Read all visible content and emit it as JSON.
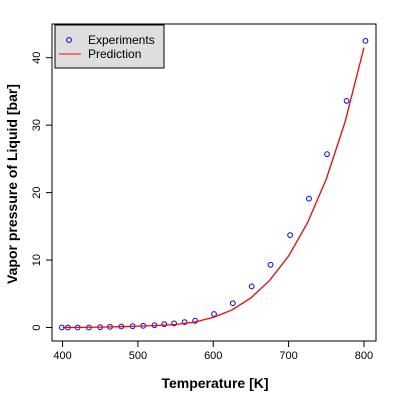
{
  "chart_data": {
    "type": "scatter",
    "title": "",
    "xlabel": "Temperature [K]",
    "ylabel": "Vapor pressure of Liquid [bar]",
    "xlim": [
      386,
      816
    ],
    "ylim": [
      -2,
      45
    ],
    "xticks": [
      400,
      500,
      600,
      700,
      800
    ],
    "yticks": [
      0,
      10,
      20,
      30,
      40
    ],
    "xtick_labels": [
      "400",
      "500",
      "600",
      "700",
      "800"
    ],
    "ytick_labels": [
      "0",
      "10",
      "20",
      "30",
      "40"
    ],
    "grid": false,
    "legend_position": "top-left",
    "series": [
      {
        "name": "Experiments",
        "kind": "points",
        "marker": "open-circle",
        "color": "#0000ff",
        "points": [
          [
            399,
            0.0
          ],
          [
            407,
            0.0
          ],
          [
            420,
            0.0
          ],
          [
            435,
            0.0
          ],
          [
            450,
            0.05
          ],
          [
            463,
            0.1
          ],
          [
            478,
            0.15
          ],
          [
            493,
            0.2
          ],
          [
            507,
            0.25
          ],
          [
            522,
            0.35
          ],
          [
            535,
            0.5
          ],
          [
            548,
            0.6
          ],
          [
            562,
            0.8
          ],
          [
            576,
            1.0
          ],
          [
            601,
            2.0
          ],
          [
            626,
            3.6
          ],
          [
            651,
            6.1
          ],
          [
            676,
            9.3
          ],
          [
            702,
            13.7
          ],
          [
            727,
            19.1
          ],
          [
            751,
            25.7
          ],
          [
            777,
            33.6
          ],
          [
            802,
            42.5
          ]
        ]
      },
      {
        "name": "Prediction",
        "kind": "line",
        "color": "#ff0000",
        "points": [
          [
            400,
            0.0
          ],
          [
            425,
            0.02
          ],
          [
            450,
            0.06
          ],
          [
            475,
            0.12
          ],
          [
            500,
            0.2
          ],
          [
            525,
            0.3
          ],
          [
            550,
            0.45
          ],
          [
            575,
            0.8
          ],
          [
            600,
            1.5
          ],
          [
            625,
            2.6
          ],
          [
            650,
            4.4
          ],
          [
            675,
            7.0
          ],
          [
            700,
            10.6
          ],
          [
            725,
            15.5
          ],
          [
            750,
            22.0
          ],
          [
            775,
            30.5
          ],
          [
            800,
            41.5
          ]
        ]
      }
    ]
  }
}
